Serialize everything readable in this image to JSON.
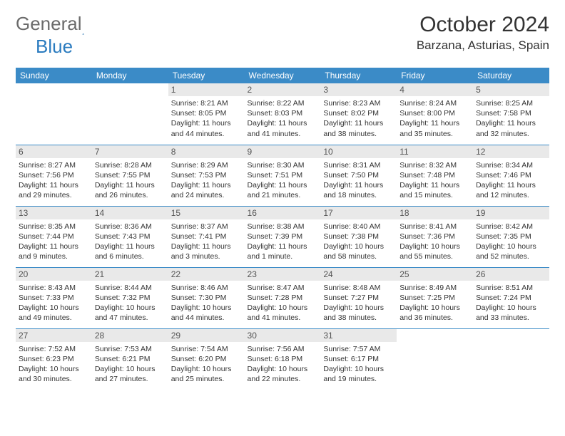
{
  "logo": {
    "general": "General",
    "blue": "Blue"
  },
  "title": "October 2024",
  "location": "Barzana, Asturias, Spain",
  "weekdays": [
    "Sunday",
    "Monday",
    "Tuesday",
    "Wednesday",
    "Thursday",
    "Friday",
    "Saturday"
  ],
  "colors": {
    "header_bg": "#3b8bc7",
    "header_text": "#ffffff",
    "daynum_bg": "#e9e9e9",
    "border": "#3b8bc7",
    "text": "#333333",
    "logo_gray": "#6b6b6b",
    "logo_blue": "#2a7bbf"
  },
  "weeks": [
    [
      null,
      null,
      {
        "n": "1",
        "sr": "Sunrise: 8:21 AM",
        "ss": "Sunset: 8:05 PM",
        "d1": "Daylight: 11 hours",
        "d2": "and 44 minutes."
      },
      {
        "n": "2",
        "sr": "Sunrise: 8:22 AM",
        "ss": "Sunset: 8:03 PM",
        "d1": "Daylight: 11 hours",
        "d2": "and 41 minutes."
      },
      {
        "n": "3",
        "sr": "Sunrise: 8:23 AM",
        "ss": "Sunset: 8:02 PM",
        "d1": "Daylight: 11 hours",
        "d2": "and 38 minutes."
      },
      {
        "n": "4",
        "sr": "Sunrise: 8:24 AM",
        "ss": "Sunset: 8:00 PM",
        "d1": "Daylight: 11 hours",
        "d2": "and 35 minutes."
      },
      {
        "n": "5",
        "sr": "Sunrise: 8:25 AM",
        "ss": "Sunset: 7:58 PM",
        "d1": "Daylight: 11 hours",
        "d2": "and 32 minutes."
      }
    ],
    [
      {
        "n": "6",
        "sr": "Sunrise: 8:27 AM",
        "ss": "Sunset: 7:56 PM",
        "d1": "Daylight: 11 hours",
        "d2": "and 29 minutes."
      },
      {
        "n": "7",
        "sr": "Sunrise: 8:28 AM",
        "ss": "Sunset: 7:55 PM",
        "d1": "Daylight: 11 hours",
        "d2": "and 26 minutes."
      },
      {
        "n": "8",
        "sr": "Sunrise: 8:29 AM",
        "ss": "Sunset: 7:53 PM",
        "d1": "Daylight: 11 hours",
        "d2": "and 24 minutes."
      },
      {
        "n": "9",
        "sr": "Sunrise: 8:30 AM",
        "ss": "Sunset: 7:51 PM",
        "d1": "Daylight: 11 hours",
        "d2": "and 21 minutes."
      },
      {
        "n": "10",
        "sr": "Sunrise: 8:31 AM",
        "ss": "Sunset: 7:50 PM",
        "d1": "Daylight: 11 hours",
        "d2": "and 18 minutes."
      },
      {
        "n": "11",
        "sr": "Sunrise: 8:32 AM",
        "ss": "Sunset: 7:48 PM",
        "d1": "Daylight: 11 hours",
        "d2": "and 15 minutes."
      },
      {
        "n": "12",
        "sr": "Sunrise: 8:34 AM",
        "ss": "Sunset: 7:46 PM",
        "d1": "Daylight: 11 hours",
        "d2": "and 12 minutes."
      }
    ],
    [
      {
        "n": "13",
        "sr": "Sunrise: 8:35 AM",
        "ss": "Sunset: 7:44 PM",
        "d1": "Daylight: 11 hours",
        "d2": "and 9 minutes."
      },
      {
        "n": "14",
        "sr": "Sunrise: 8:36 AM",
        "ss": "Sunset: 7:43 PM",
        "d1": "Daylight: 11 hours",
        "d2": "and 6 minutes."
      },
      {
        "n": "15",
        "sr": "Sunrise: 8:37 AM",
        "ss": "Sunset: 7:41 PM",
        "d1": "Daylight: 11 hours",
        "d2": "and 3 minutes."
      },
      {
        "n": "16",
        "sr": "Sunrise: 8:38 AM",
        "ss": "Sunset: 7:39 PM",
        "d1": "Daylight: 11 hours",
        "d2": "and 1 minute."
      },
      {
        "n": "17",
        "sr": "Sunrise: 8:40 AM",
        "ss": "Sunset: 7:38 PM",
        "d1": "Daylight: 10 hours",
        "d2": "and 58 minutes."
      },
      {
        "n": "18",
        "sr": "Sunrise: 8:41 AM",
        "ss": "Sunset: 7:36 PM",
        "d1": "Daylight: 10 hours",
        "d2": "and 55 minutes."
      },
      {
        "n": "19",
        "sr": "Sunrise: 8:42 AM",
        "ss": "Sunset: 7:35 PM",
        "d1": "Daylight: 10 hours",
        "d2": "and 52 minutes."
      }
    ],
    [
      {
        "n": "20",
        "sr": "Sunrise: 8:43 AM",
        "ss": "Sunset: 7:33 PM",
        "d1": "Daylight: 10 hours",
        "d2": "and 49 minutes."
      },
      {
        "n": "21",
        "sr": "Sunrise: 8:44 AM",
        "ss": "Sunset: 7:32 PM",
        "d1": "Daylight: 10 hours",
        "d2": "and 47 minutes."
      },
      {
        "n": "22",
        "sr": "Sunrise: 8:46 AM",
        "ss": "Sunset: 7:30 PM",
        "d1": "Daylight: 10 hours",
        "d2": "and 44 minutes."
      },
      {
        "n": "23",
        "sr": "Sunrise: 8:47 AM",
        "ss": "Sunset: 7:28 PM",
        "d1": "Daylight: 10 hours",
        "d2": "and 41 minutes."
      },
      {
        "n": "24",
        "sr": "Sunrise: 8:48 AM",
        "ss": "Sunset: 7:27 PM",
        "d1": "Daylight: 10 hours",
        "d2": "and 38 minutes."
      },
      {
        "n": "25",
        "sr": "Sunrise: 8:49 AM",
        "ss": "Sunset: 7:25 PM",
        "d1": "Daylight: 10 hours",
        "d2": "and 36 minutes."
      },
      {
        "n": "26",
        "sr": "Sunrise: 8:51 AM",
        "ss": "Sunset: 7:24 PM",
        "d1": "Daylight: 10 hours",
        "d2": "and 33 minutes."
      }
    ],
    [
      {
        "n": "27",
        "sr": "Sunrise: 7:52 AM",
        "ss": "Sunset: 6:23 PM",
        "d1": "Daylight: 10 hours",
        "d2": "and 30 minutes."
      },
      {
        "n": "28",
        "sr": "Sunrise: 7:53 AM",
        "ss": "Sunset: 6:21 PM",
        "d1": "Daylight: 10 hours",
        "d2": "and 27 minutes."
      },
      {
        "n": "29",
        "sr": "Sunrise: 7:54 AM",
        "ss": "Sunset: 6:20 PM",
        "d1": "Daylight: 10 hours",
        "d2": "and 25 minutes."
      },
      {
        "n": "30",
        "sr": "Sunrise: 7:56 AM",
        "ss": "Sunset: 6:18 PM",
        "d1": "Daylight: 10 hours",
        "d2": "and 22 minutes."
      },
      {
        "n": "31",
        "sr": "Sunrise: 7:57 AM",
        "ss": "Sunset: 6:17 PM",
        "d1": "Daylight: 10 hours",
        "d2": "and 19 minutes."
      },
      null,
      null
    ]
  ]
}
